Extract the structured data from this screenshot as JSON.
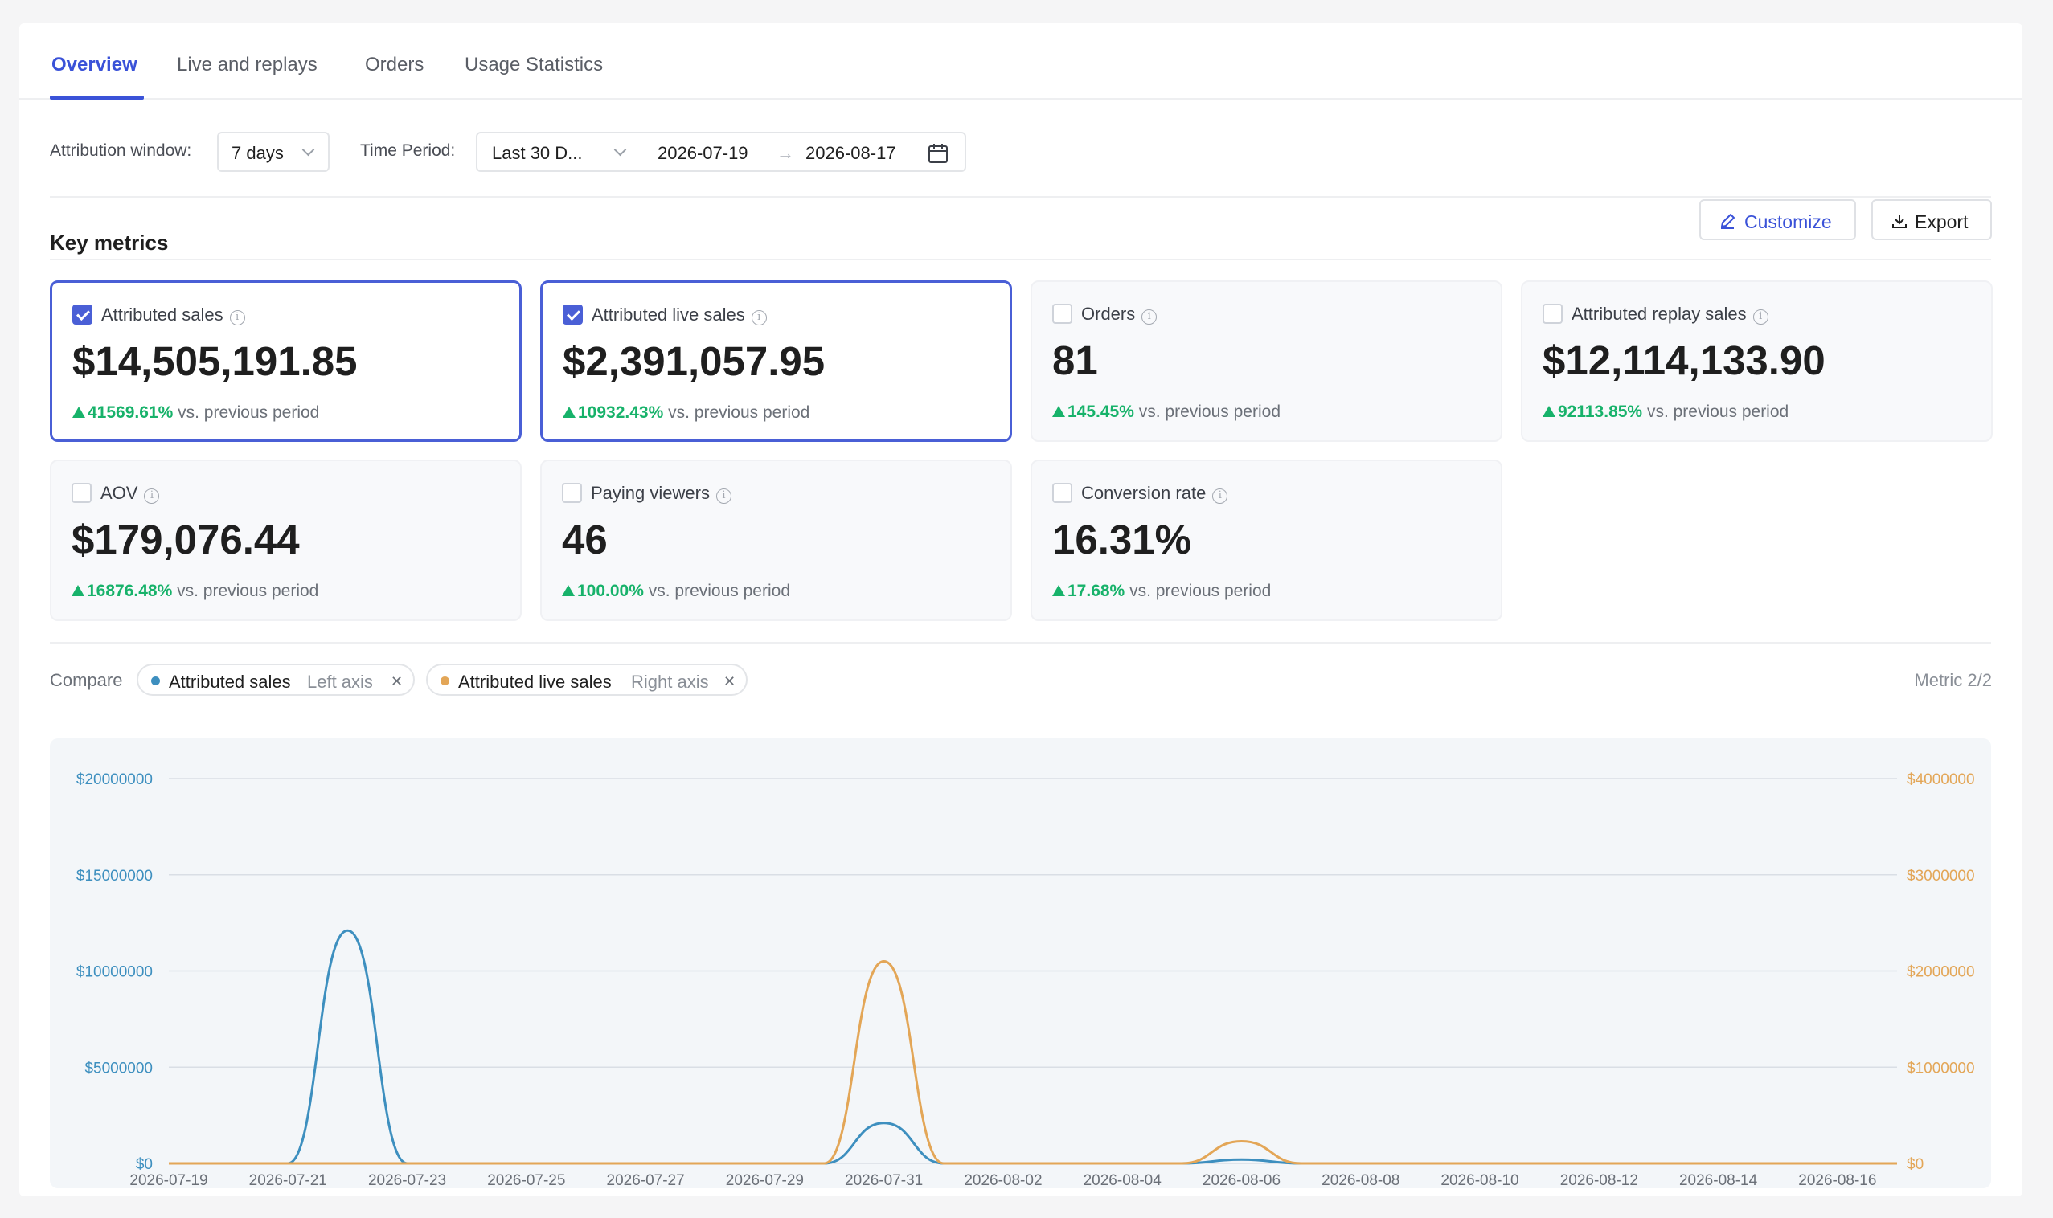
{
  "tabs": [
    "Overview",
    "Live and replays",
    "Orders",
    "Usage Statistics"
  ],
  "filters": {
    "attribution_label": "Attribution window:",
    "attribution_value": "7 days",
    "period_label": "Time Period:",
    "period_value": "Last 30 D...",
    "start_date": "2026-07-19",
    "arrow": "→",
    "end_date": "2026-08-17"
  },
  "key_metrics": {
    "title": "Key metrics",
    "customize_label": "Customize",
    "export_label": "Export"
  },
  "cards": [
    {
      "label": "Attributed sales",
      "value": "$14,505,191.85",
      "change": "41569.61%",
      "suffix": "vs. previous period",
      "checked": true
    },
    {
      "label": "Attributed live sales",
      "value": "$2,391,057.95",
      "change": "10932.43%",
      "suffix": "vs. previous period",
      "checked": true
    },
    {
      "label": "Orders",
      "value": "81",
      "change": "145.45%",
      "suffix": "vs. previous period",
      "checked": false
    },
    {
      "label": "Attributed replay sales",
      "value": "$12,114,133.90",
      "change": "92113.85%",
      "suffix": "vs. previous period",
      "checked": false
    },
    {
      "label": "AOV",
      "value": "$179,076.44",
      "change": "16876.48%",
      "suffix": "vs. previous period",
      "checked": false
    },
    {
      "label": "Paying viewers",
      "value": "46",
      "change": "100.00%",
      "suffix": "vs. previous period",
      "checked": false
    },
    {
      "label": "Conversion rate",
      "value": "16.31%",
      "change": "17.68%",
      "suffix": "vs. previous period",
      "checked": false
    }
  ],
  "compare": {
    "label": "Compare",
    "chips": [
      {
        "name": "Attributed sales",
        "axis": "Left axis",
        "color": "#3d8fbf"
      },
      {
        "name": "Attributed live sales",
        "axis": "Right axis",
        "color": "#e3a657"
      }
    ],
    "metric_count": "Metric 2/2"
  },
  "chart_data": {
    "type": "line",
    "x": [
      "2026-07-19",
      "2026-07-20",
      "2026-07-21",
      "2026-07-22",
      "2026-07-23",
      "2026-07-24",
      "2026-07-25",
      "2026-07-26",
      "2026-07-27",
      "2026-07-28",
      "2026-07-29",
      "2026-07-30",
      "2026-07-31",
      "2026-08-01",
      "2026-08-02",
      "2026-08-03",
      "2026-08-04",
      "2026-08-05",
      "2026-08-06",
      "2026-08-07",
      "2026-08-08",
      "2026-08-09",
      "2026-08-10",
      "2026-08-11",
      "2026-08-12",
      "2026-08-13",
      "2026-08-14",
      "2026-08-15",
      "2026-08-16",
      "2026-08-17"
    ],
    "x_tick_labels": [
      "2026-07-19",
      "2026-07-21",
      "2026-07-23",
      "2026-07-25",
      "2026-07-27",
      "2026-07-29",
      "2026-07-31",
      "2026-08-02",
      "2026-08-04",
      "2026-08-06",
      "2026-08-08",
      "2026-08-10",
      "2026-08-12",
      "2026-08-14",
      "2026-08-16"
    ],
    "series": [
      {
        "name": "Attributed sales",
        "axis": "left",
        "color": "#3d8fbf",
        "values": [
          0,
          0,
          0,
          12100000,
          0,
          0,
          0,
          0,
          0,
          0,
          0,
          0,
          2100000,
          0,
          0,
          0,
          0,
          0,
          200000,
          0,
          0,
          0,
          0,
          0,
          0,
          0,
          0,
          0,
          0,
          0
        ]
      },
      {
        "name": "Attributed live sales",
        "axis": "right",
        "color": "#e3a657",
        "values": [
          0,
          0,
          0,
          0,
          0,
          0,
          0,
          0,
          0,
          0,
          0,
          0,
          2100000,
          0,
          0,
          0,
          0,
          0,
          230000,
          0,
          0,
          0,
          0,
          0,
          0,
          0,
          0,
          0,
          0,
          0
        ]
      }
    ],
    "left_axis": {
      "ticks": [
        "$0",
        "$5000000",
        "$10000000",
        "$15000000",
        "$20000000"
      ],
      "ylim": [
        0,
        20000000
      ],
      "color": "#3d8fbf"
    },
    "right_axis": {
      "ticks": [
        "$0",
        "$1000000",
        "$2000000",
        "$3000000",
        "$4000000"
      ],
      "ylim": [
        0,
        4000000
      ],
      "color": "#e3a657"
    },
    "grid": true
  }
}
